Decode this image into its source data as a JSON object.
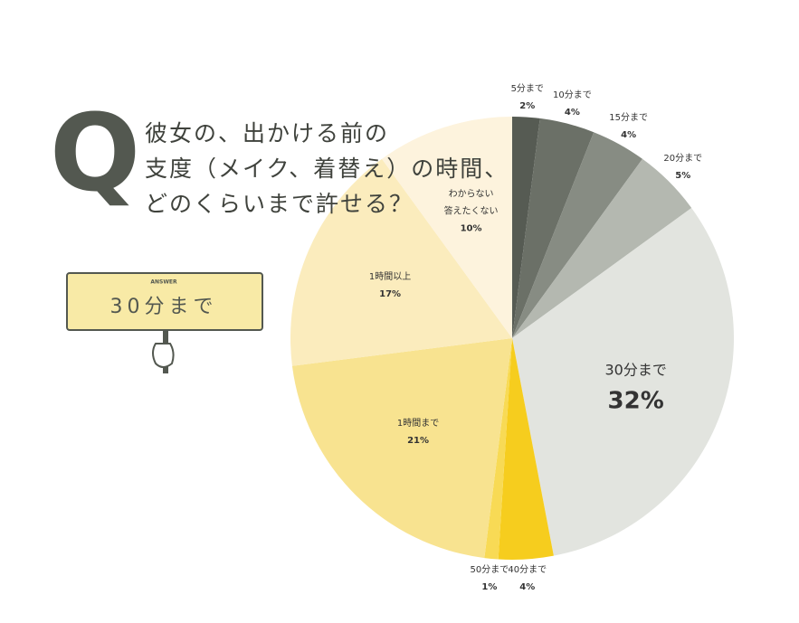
{
  "chart_data": {
    "type": "pie",
    "question_mark": "Q",
    "title": [
      "彼女の、出かける前の",
      "支度（メイク、着替え）の時間、",
      "どのくらいまで許せる？"
    ],
    "answer_label": "ANSWER",
    "answer": "30分まで",
    "categories": [
      "5分まで",
      "10分まで",
      "15分まで",
      "20分まで",
      "30分まで",
      "40分まで",
      "50分まで",
      "1時間まで",
      "1時間以上",
      "わからない\n答えたくない"
    ],
    "values": [
      2,
      4,
      4,
      5,
      32,
      4,
      1,
      21,
      17,
      10
    ],
    "value_labels": [
      "2%",
      "4%",
      "4%",
      "5%",
      "32%",
      "4%",
      "1%",
      "21%",
      "17%",
      "10%"
    ],
    "colors": [
      "#565b53",
      "#6b7067",
      "#878c83",
      "#b4b8b0",
      "#e2e4df",
      "#f6cd1e",
      "#f8da55",
      "#f8e390",
      "#fbecbd",
      "#fdf3dd"
    ]
  }
}
